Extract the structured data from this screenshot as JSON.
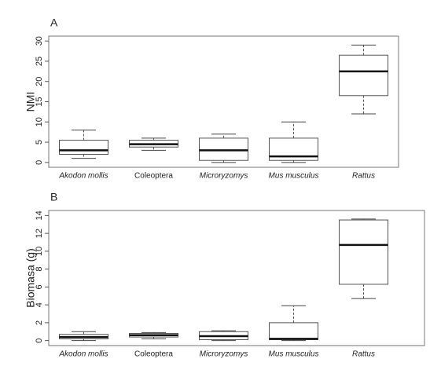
{
  "chart_data": [
    {
      "type": "box",
      "label": "A",
      "y_label": "NMI",
      "categories": [
        "Akodon mollis",
        "Coleoptera",
        "Microryzomys",
        "Mus musculus",
        "Rattus"
      ],
      "italic": [
        true,
        false,
        true,
        true,
        true
      ],
      "whislo": [
        1,
        3,
        0,
        0,
        12
      ],
      "q1": [
        2,
        3.8,
        0.5,
        0.5,
        16.5
      ],
      "med": [
        3,
        4.5,
        3,
        1.5,
        22.5
      ],
      "q3": [
        5.5,
        5.5,
        6,
        6,
        26.5
      ],
      "whishi": [
        8,
        6,
        7,
        10,
        29
      ],
      "ylim": [
        -1.2,
        31.2
      ],
      "yticks": [
        0,
        5,
        10,
        15,
        20,
        25,
        30
      ],
      "color": "#ffffff"
    },
    {
      "type": "box",
      "label": "B",
      "y_label": "Biomasa (g)",
      "categories": [
        "Akodon mollis",
        "Coleoptera",
        "Microryzomys",
        "Mus musculus",
        "Rattus"
      ],
      "italic": [
        true,
        false,
        true,
        true,
        true
      ],
      "whislo": [
        0,
        0.2,
        0,
        0,
        4.7
      ],
      "q1": [
        0.2,
        0.4,
        0.1,
        0.1,
        6.3
      ],
      "med": [
        0.4,
        0.6,
        0.5,
        0.2,
        10.7
      ],
      "q3": [
        0.7,
        0.8,
        1.0,
        2.0,
        13.5
      ],
      "whishi": [
        1.0,
        0.9,
        1.1,
        3.9,
        13.6
      ],
      "ylim": [
        -0.56,
        14.56
      ],
      "yticks": [
        0,
        2,
        4,
        6,
        8,
        10,
        12,
        14
      ],
      "color": "#ffffff"
    }
  ]
}
